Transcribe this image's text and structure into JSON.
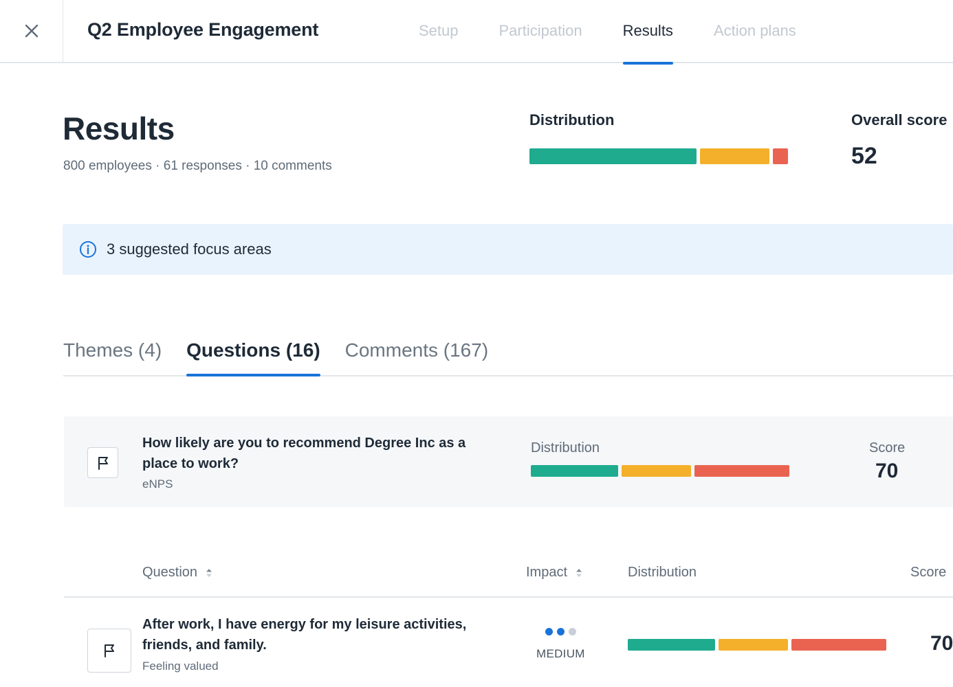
{
  "header": {
    "title": "Q2 Employee Engagement",
    "tabs": [
      {
        "label": "Setup",
        "active": false
      },
      {
        "label": "Participation",
        "active": false
      },
      {
        "label": "Results",
        "active": true
      },
      {
        "label": "Action plans",
        "active": false
      }
    ]
  },
  "results": {
    "title": "Results",
    "meta": "800 employees · 61 responses · 10 comments",
    "distribution_label": "Distribution",
    "distribution": [
      {
        "status": "positive",
        "fraction": 0.65,
        "color": "#1eab8e"
      },
      {
        "status": "neutral",
        "fraction": 0.27,
        "color": "#f4b02a"
      },
      {
        "status": "negative",
        "fraction": 0.06,
        "color": "#ea6351"
      }
    ],
    "overall_label": "Overall score",
    "overall_value": "52"
  },
  "focus_banner": {
    "icon": "info-icon",
    "text": "3 suggested focus areas"
  },
  "section_tabs": [
    {
      "label": "Themes (4)",
      "active": false
    },
    {
      "label": "Questions (16)",
      "active": true
    },
    {
      "label": "Comments (167)",
      "active": false
    }
  ],
  "enps": {
    "icon": "flag-icon",
    "question": "How likely are you to recommend Degree Inc as a place to work?",
    "subtitle": "eNPS",
    "distribution_label": "Distribution",
    "distribution": [
      {
        "status": "positive",
        "fraction": 0.34,
        "color": "#1eab8e"
      },
      {
        "status": "neutral",
        "fraction": 0.27,
        "color": "#f4b02a"
      },
      {
        "status": "negative",
        "fraction": 0.37,
        "color": "#ea6351"
      }
    ],
    "score_label": "Score",
    "score": "70"
  },
  "table": {
    "columns": {
      "question": "Question",
      "impact": "Impact",
      "distribution": "Distribution",
      "score": "Score"
    },
    "rows": [
      {
        "icon": "flag-icon",
        "question": "After work, I have energy for my leisure activities, friends, and family.",
        "theme": "Feeling valued",
        "impact_level": 2,
        "impact_max": 3,
        "impact_label": "MEDIUM",
        "distribution": [
          {
            "status": "positive",
            "fraction": 0.34,
            "color": "#1eab8e"
          },
          {
            "status": "neutral",
            "fraction": 0.27,
            "color": "#f4b02a"
          },
          {
            "status": "negative",
            "fraction": 0.37,
            "color": "#ea6351"
          }
        ],
        "score": "70"
      }
    ]
  },
  "colors": {
    "accent": "#1a73d9",
    "dot_active": "#1a73d9",
    "dot_inactive": "#c9cfd6"
  }
}
